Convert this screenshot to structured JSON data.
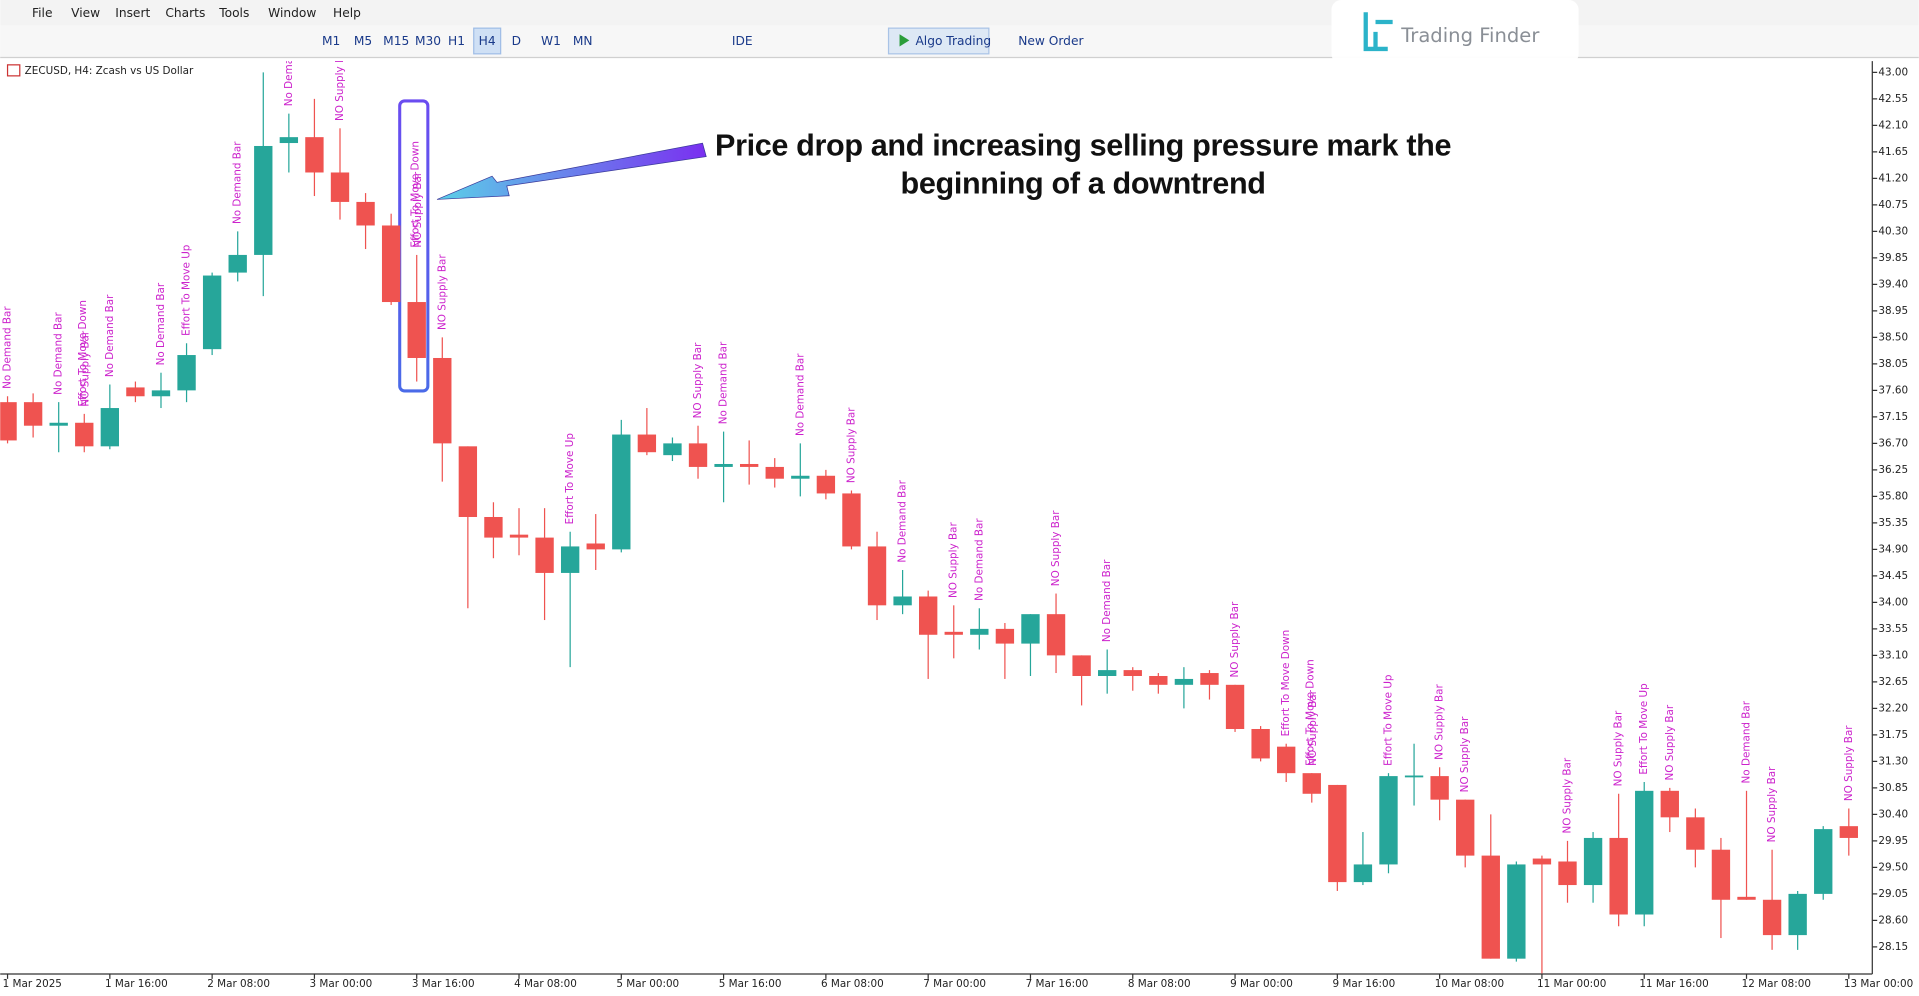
{
  "menu": [
    "File",
    "View",
    "Insert",
    "Charts",
    "Tools",
    "Window",
    "Help"
  ],
  "timeframes": [
    "M1",
    "M5",
    "M15",
    "M30",
    "H1",
    "H4",
    "D",
    "W1",
    "MN"
  ],
  "toolbar": {
    "ide": "IDE",
    "algo_trading": "Algo Trading",
    "new_order": "New Order"
  },
  "logo": "Trading Finder",
  "chart_data": {
    "type": "candlestick",
    "title": "ZECUSD, H4:  Zcash vs US Dollar",
    "annotation": "Price drop and increasing selling pressure mark the beginning of a downtrend",
    "up_color": "#26a69a",
    "down_color": "#ef5350",
    "signal_color": "#cc22cc",
    "categories": [
      "1 Mar 2025",
      null,
      null,
      null,
      "1 Mar 16:00",
      null,
      null,
      null,
      "2 Mar 08:00",
      null,
      null,
      null,
      "3 Mar 00:00",
      null,
      null,
      null,
      "3 Mar 16:00",
      null,
      null,
      null,
      "4 Mar 08:00",
      null,
      null,
      null,
      "5 Mar 00:00",
      null,
      null,
      null,
      "5 Mar 16:00",
      null,
      null,
      null,
      "6 Mar 08:00",
      null,
      null,
      null,
      "7 Mar 00:00",
      null,
      null,
      null,
      "7 Mar 16:00",
      null,
      null,
      null,
      "8 Mar 08:00",
      null,
      null,
      null,
      "9 Mar 00:00",
      null,
      null,
      null,
      "9 Mar 16:00",
      null,
      null,
      null,
      "10 Mar 08:00",
      null,
      null,
      null,
      "11 Mar 00:00",
      null,
      null,
      null,
      "11 Mar 16:00",
      null,
      null,
      null,
      "12 Mar 08:00",
      null,
      null,
      null,
      "13 Mar 00:00"
    ],
    "open": [
      37.4,
      37.4,
      37.0,
      37.05,
      36.65,
      37.65,
      37.5,
      37.6,
      38.3,
      39.6,
      39.9,
      41.8,
      41.9,
      41.3,
      40.8,
      40.4,
      39.1,
      38.15,
      36.65,
      35.45,
      35.15,
      35.1,
      34.5,
      35.0,
      34.9,
      36.85,
      36.5,
      36.7,
      36.3,
      36.35,
      36.3,
      36.1,
      36.15,
      35.85,
      34.95,
      33.95,
      34.1,
      33.5,
      33.45,
      33.55,
      33.3,
      33.8,
      33.1,
      32.75,
      32.85,
      32.75,
      32.6,
      32.8,
      32.6,
      31.85,
      31.55,
      31.1,
      30.9,
      29.25,
      29.55,
      31.04,
      31.05,
      30.65,
      29.7,
      27.95,
      29.65,
      29.6,
      29.2,
      30.0,
      28.7,
      30.8,
      30.35,
      29.8,
      29.0,
      28.95,
      28.35,
      29.05,
      30.2
    ],
    "high": [
      37.5,
      37.55,
      37.4,
      37.2,
      37.7,
      37.75,
      37.9,
      38.4,
      39.6,
      40.3,
      43.0,
      42.3,
      42.55,
      42.05,
      40.95,
      40.6,
      39.9,
      38.5,
      36.65,
      35.7,
      35.6,
      35.6,
      35.2,
      35.5,
      37.1,
      37.3,
      36.8,
      37.0,
      36.9,
      36.75,
      36.45,
      36.7,
      36.25,
      35.9,
      35.2,
      34.55,
      34.2,
      33.95,
      33.9,
      33.65,
      33.8,
      34.15,
      33.1,
      33.2,
      32.9,
      32.8,
      32.9,
      32.85,
      32.6,
      31.9,
      31.6,
      31.1,
      30.9,
      30.1,
      31.1,
      31.6,
      31.2,
      30.65,
      30.4,
      29.6,
      29.7,
      29.95,
      30.1,
      30.75,
      30.95,
      30.85,
      30.5,
      30.0,
      30.8,
      29.8,
      29.1,
      30.2,
      30.5
    ],
    "low": [
      36.7,
      36.8,
      36.55,
      36.55,
      36.6,
      37.4,
      37.3,
      37.4,
      38.2,
      39.45,
      39.2,
      41.3,
      40.9,
      40.5,
      40.0,
      39.05,
      37.75,
      36.05,
      33.9,
      34.75,
      34.8,
      33.7,
      32.9,
      34.55,
      34.85,
      36.5,
      36.4,
      36.1,
      35.7,
      36.0,
      35.95,
      35.8,
      35.75,
      34.9,
      33.7,
      33.8,
      32.7,
      33.05,
      33.2,
      32.7,
      32.75,
      32.8,
      32.25,
      32.45,
      32.5,
      32.45,
      32.2,
      32.35,
      31.8,
      31.3,
      30.95,
      30.6,
      29.1,
      29.2,
      29.4,
      30.55,
      30.3,
      29.5,
      27.95,
      27.9,
      27.7,
      28.9,
      28.9,
      28.5,
      28.5,
      30.1,
      29.5,
      28.3,
      28.95,
      28.1,
      28.1,
      28.95,
      29.7
    ],
    "close": [
      36.75,
      37.0,
      37.05,
      36.65,
      37.3,
      37.5,
      37.6,
      38.2,
      39.55,
      39.9,
      41.75,
      41.9,
      41.3,
      40.8,
      40.4,
      39.1,
      38.15,
      36.7,
      35.45,
      35.1,
      35.1,
      34.5,
      34.95,
      34.9,
      36.85,
      36.55,
      36.7,
      36.3,
      36.35,
      36.3,
      36.1,
      36.15,
      35.85,
      34.95,
      33.95,
      34.1,
      33.45,
      33.45,
      33.55,
      33.3,
      33.8,
      33.1,
      32.75,
      32.85,
      32.75,
      32.6,
      32.7,
      32.6,
      31.85,
      31.35,
      31.1,
      30.75,
      29.25,
      29.55,
      31.05,
      31.06,
      30.65,
      29.7,
      27.95,
      29.55,
      29.55,
      29.2,
      30.0,
      28.7,
      30.8,
      30.35,
      29.8,
      28.95,
      28.95,
      28.35,
      29.05,
      30.15,
      30.0
    ],
    "signals": [
      [
        "No Demand Bar"
      ],
      null,
      [
        "No Demand Bar"
      ],
      [
        "Effort To Move Down",
        "NO Supply Bar"
      ],
      [
        "No Demand Bar"
      ],
      null,
      [
        "No Demand Bar"
      ],
      [
        "Effort To Move Up"
      ],
      null,
      [
        "No Demand Bar"
      ],
      null,
      [
        "No Demand Bar"
      ],
      null,
      [
        "NO Supply Bar"
      ],
      null,
      null,
      [
        "Effort To Move Down",
        "NO Supply Bar"
      ],
      [
        "NO Supply Bar"
      ],
      null,
      null,
      null,
      null,
      [
        "Effort To Move Up"
      ],
      null,
      null,
      null,
      null,
      [
        "NO Supply Bar"
      ],
      [
        "No Demand Bar"
      ],
      null,
      null,
      [
        "No Demand Bar"
      ],
      null,
      [
        "NO Supply Bar"
      ],
      null,
      [
        "No Demand Bar"
      ],
      null,
      [
        "NO Supply Bar"
      ],
      [
        "No Demand Bar"
      ],
      null,
      null,
      [
        "NO Supply Bar"
      ],
      null,
      [
        "No Demand Bar"
      ],
      null,
      null,
      null,
      null,
      [
        "NO Supply Bar"
      ],
      null,
      [
        "Effort To Move Down"
      ],
      [
        "Effort To Move Down",
        "NO Supply Bar"
      ],
      null,
      null,
      [
        "Effort To Move Up"
      ],
      null,
      [
        "NO Supply Bar"
      ],
      [
        "NO Supply Bar"
      ],
      null,
      null,
      null,
      [
        "NO Supply Bar"
      ],
      null,
      [
        "NO Supply Bar"
      ],
      [
        "Effort To Move Up"
      ],
      [
        "NO Supply Bar"
      ],
      null,
      null,
      [
        "No Demand Bar"
      ],
      [
        "NO Supply Bar"
      ],
      null,
      null,
      [
        "NO Supply Bar"
      ]
    ],
    "ylim": [
      27.69,
      43.19
    ],
    "yticks": [
      {
        "value": 43,
        "label": "43.00"
      },
      {
        "value": 42.55,
        "label": "42.55"
      },
      {
        "value": 42.1,
        "label": "42.10"
      },
      {
        "value": 41.65,
        "label": "41.65"
      },
      {
        "value": 41.2,
        "label": "41.20"
      },
      {
        "value": 40.75,
        "label": "40.75"
      },
      {
        "value": 40.3,
        "label": "40.30"
      },
      {
        "value": 39.85,
        "label": "39.85"
      },
      {
        "value": 39.4,
        "label": "39.40"
      },
      {
        "value": 38.95,
        "label": "38.95"
      },
      {
        "value": 38.5,
        "label": "38.50"
      },
      {
        "value": 38.05,
        "label": "38.05"
      },
      {
        "value": 37.6,
        "label": "37.60"
      },
      {
        "value": 37.15,
        "label": "37.15"
      },
      {
        "value": 36.7,
        "label": "36.70"
      },
      {
        "value": 36.25,
        "label": "36.25"
      },
      {
        "value": 35.8,
        "label": "35.80"
      },
      {
        "value": 35.35,
        "label": "35.35"
      },
      {
        "value": 34.9,
        "label": "34.90"
      },
      {
        "value": 34.45,
        "label": "34.45"
      },
      {
        "value": 34,
        "label": "34.00"
      },
      {
        "value": 33.55,
        "label": "33.55"
      },
      {
        "value": 33.1,
        "label": "33.10"
      },
      {
        "value": 32.65,
        "label": "32.65"
      },
      {
        "value": 32.2,
        "label": "32.20"
      },
      {
        "value": 31.75,
        "label": "31.75"
      },
      {
        "value": 31.3,
        "label": "31.30"
      },
      {
        "value": 30.85,
        "label": "30.85"
      },
      {
        "value": 30.4,
        "label": "30.40"
      },
      {
        "value": 29.95,
        "label": "29.95"
      },
      {
        "value": 29.5,
        "label": "29.50"
      },
      {
        "value": 29.05,
        "label": "29.05"
      },
      {
        "value": 28.6,
        "label": "28.60"
      },
      {
        "value": 28.15,
        "label": "28.15"
      }
    ],
    "grid": false
  }
}
